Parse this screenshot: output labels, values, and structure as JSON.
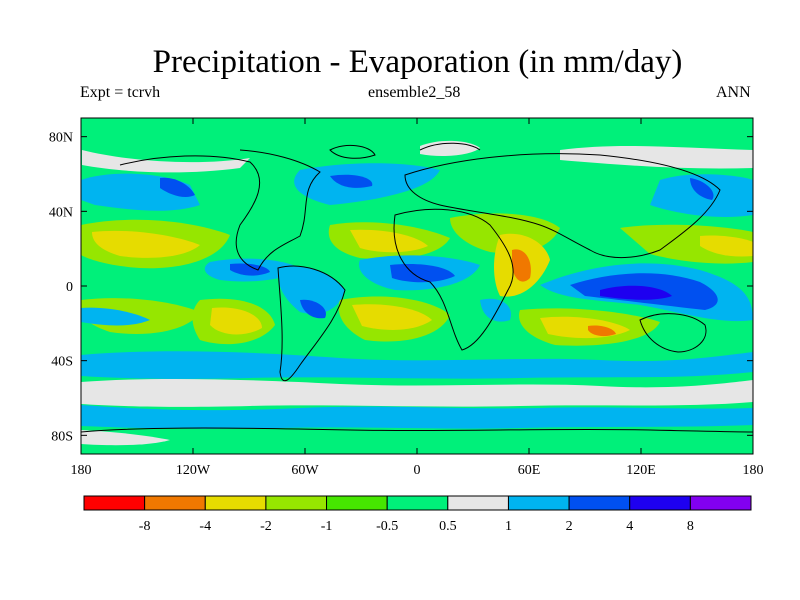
{
  "chart_data": {
    "type": "heatmap",
    "title": "Precipitation - Evaporation (in mm/day)",
    "subtitle_left": "Expt = tcrvh",
    "subtitle_center": "ensemble2_58",
    "subtitle_right": "ANN",
    "x_axis": {
      "range": [
        -180,
        180
      ],
      "ticks": [
        {
          "value": -180,
          "label": "180"
        },
        {
          "value": -120,
          "label": "120W"
        },
        {
          "value": -60,
          "label": "60W"
        },
        {
          "value": 0,
          "label": "0"
        },
        {
          "value": 60,
          "label": "60E"
        },
        {
          "value": 120,
          "label": "120E"
        },
        {
          "value": 180,
          "label": "180"
        }
      ]
    },
    "y_axis": {
      "range": [
        -90,
        90
      ],
      "ticks": [
        {
          "value": 80,
          "label": "80N"
        },
        {
          "value": 40,
          "label": "40N"
        },
        {
          "value": 0,
          "label": "0"
        },
        {
          "value": -40,
          "label": "40S"
        },
        {
          "value": -80,
          "label": "80S"
        }
      ]
    },
    "colorbar": {
      "colors": [
        "#ff0000",
        "#f07800",
        "#e6dc00",
        "#96e600",
        "#46e600",
        "#00f07a",
        "#e6e6e6",
        "#00b4f0",
        "#0050f0",
        "#1e00f0",
        "#8200f0"
      ],
      "labels": [
        "-8",
        "-4",
        "-2",
        "-1",
        "-0.5",
        "0.5",
        "1",
        "2",
        "4",
        "8"
      ]
    }
  }
}
